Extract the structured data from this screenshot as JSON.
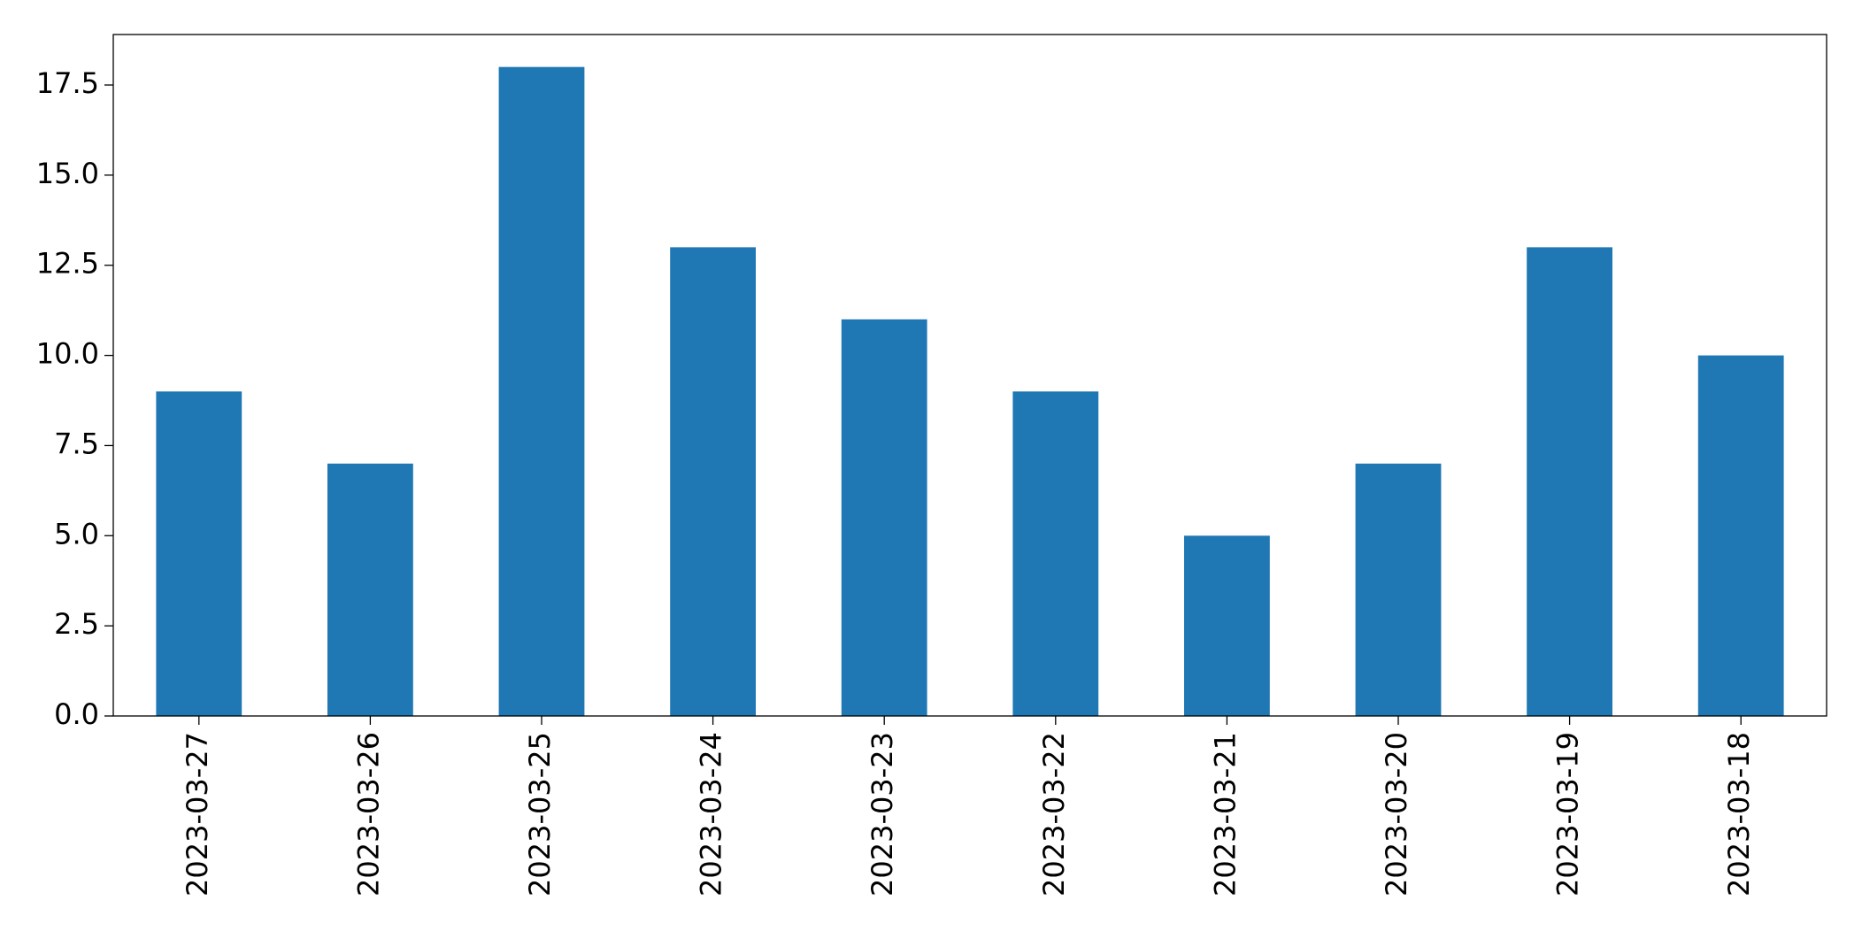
{
  "chart_data": {
    "type": "bar",
    "categories": [
      "2023-03-27",
      "2023-03-26",
      "2023-03-25",
      "2023-03-24",
      "2023-03-23",
      "2023-03-22",
      "2023-03-21",
      "2023-03-20",
      "2023-03-19",
      "2023-03-18"
    ],
    "values": [
      9,
      7,
      18,
      13,
      11,
      9,
      5,
      7,
      13,
      10
    ],
    "color": "#1f77b4",
    "ylim": [
      0,
      18.9
    ],
    "yticks": [
      {
        "value": 0,
        "label": "0.0"
      },
      2.5,
      {
        "value": 5,
        "label": "5.0"
      },
      7.5,
      {
        "value": 10,
        "label": "10.0"
      },
      12.5,
      {
        "value": 15,
        "label": "15.0"
      },
      17.5
    ],
    "grid": false
  }
}
